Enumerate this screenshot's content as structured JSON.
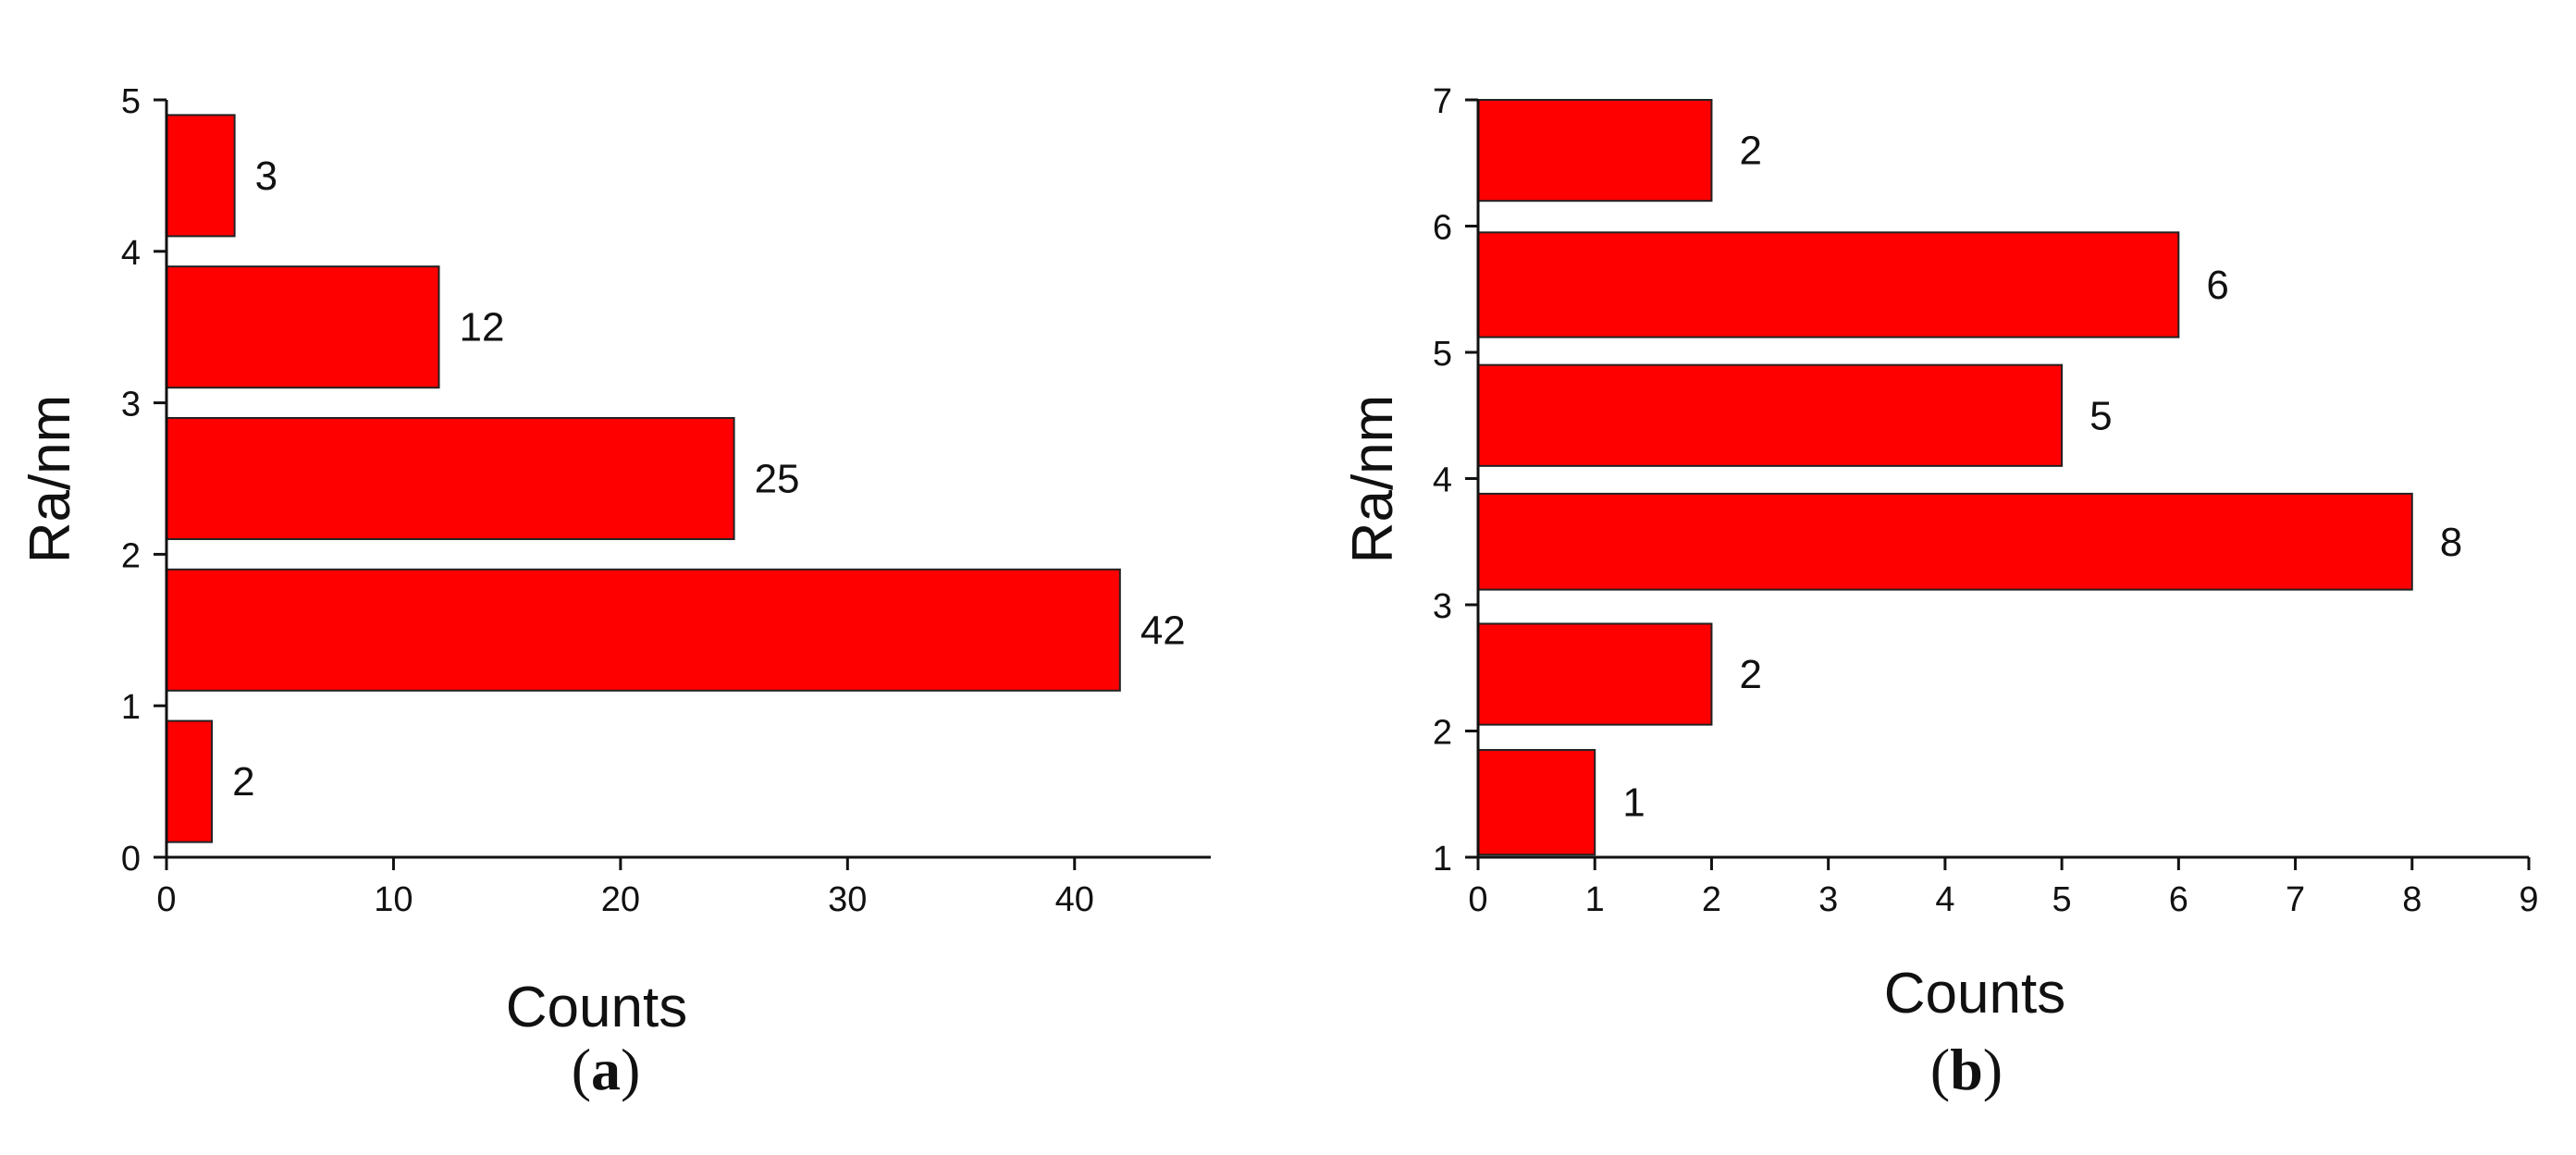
{
  "colors": {
    "bar_fill": "#ff0000",
    "bar_stroke": "#222222",
    "axis": "#111111"
  },
  "chart_data": [
    {
      "type": "bar",
      "orientation": "horizontal",
      "panel_label": {
        "open": "(",
        "letter": "a",
        "close": ")"
      },
      "xlabel": "Counts",
      "ylabel": "Ra/nm",
      "xlim": [
        0,
        46
      ],
      "ylim": [
        0,
        5
      ],
      "xticks": [
        0,
        10,
        20,
        30,
        40
      ],
      "yticks": [
        0,
        1,
        2,
        3,
        4,
        5
      ],
      "bins": [
        [
          0.1,
          0.9
        ],
        [
          1.1,
          1.9
        ],
        [
          2.1,
          2.9
        ],
        [
          3.1,
          3.9
        ],
        [
          4.1,
          4.9
        ]
      ],
      "values": [
        2,
        42,
        25,
        12,
        3
      ],
      "data_labels": [
        "2",
        "42",
        "25",
        "12",
        "3"
      ],
      "grid": false
    },
    {
      "type": "bar",
      "orientation": "horizontal",
      "panel_label": {
        "open": "(",
        "letter": "b",
        "close": ")"
      },
      "xlabel": "Counts",
      "ylabel": "Ra/nm",
      "xlim": [
        0,
        9
      ],
      "ylim": [
        1,
        7
      ],
      "xticks": [
        0,
        1,
        2,
        3,
        4,
        5,
        6,
        7,
        8,
        9
      ],
      "yticks": [
        1,
        2,
        3,
        4,
        5,
        6,
        7
      ],
      "bins": [
        [
          1.02,
          1.85
        ],
        [
          2.05,
          2.85
        ],
        [
          3.12,
          3.88
        ],
        [
          4.1,
          4.9
        ],
        [
          5.12,
          5.95
        ],
        [
          6.2,
          7.0
        ]
      ],
      "values": [
        1,
        2,
        8,
        5,
        6,
        2
      ],
      "data_labels": [
        "1",
        "2",
        "8",
        "5",
        "6",
        "2"
      ],
      "grid": false
    }
  ]
}
